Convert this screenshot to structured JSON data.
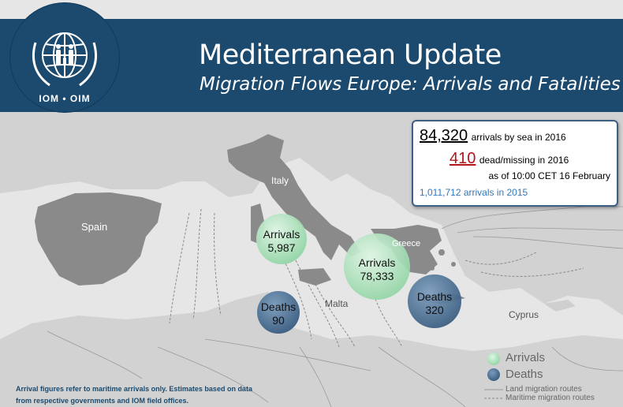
{
  "header": {
    "title": "Mediterranean Update",
    "subtitle": "Migration Flows Europe: Arrivals and Fatalities",
    "logo_text": "IOM • OIM"
  },
  "stats": {
    "arrivals_2016_value": "84,320",
    "arrivals_2016_text": "arrivals by sea in 2016",
    "dead_missing_value": "410",
    "dead_missing_text": "dead/missing in 2016",
    "as_of": "as of 10:00 CET 16 February",
    "arrivals_2015": "1,011,712 arrivals in 2015"
  },
  "places": {
    "spain": "Spain",
    "italy": "Italy",
    "greece": "Greece",
    "malta": "Malta",
    "cyprus": "Cyprus"
  },
  "bubbles": {
    "italy_arrivals": {
      "label": "Arrivals",
      "value": "5,987"
    },
    "italy_deaths": {
      "label": "Deaths",
      "value": "90"
    },
    "greece_arrivals": {
      "label": "Arrivals",
      "value": "78,333"
    },
    "greece_deaths": {
      "label": "Deaths",
      "value": "320"
    }
  },
  "legend": {
    "arrivals": "Arrivals",
    "deaths": "Deaths",
    "land_routes": "Land migration routes",
    "maritime_routes": "Maritime migration routes"
  },
  "footnote": {
    "line1": "Arrival figures  refer to maritime arrivals only. Estimates based on data",
    "line2": "from respective governments and IOM field offices."
  },
  "colors": {
    "header": "#1b4a6e",
    "land_highlight": "#8a8a8a",
    "land_other": "#cfcfcf",
    "sea": "#e6e6e6",
    "arrivals_bubble": "#9fdcb0",
    "deaths_bubble": "#4a6f94",
    "dead_value": "#b3151b",
    "arrivals_2015": "#2f78c0"
  }
}
